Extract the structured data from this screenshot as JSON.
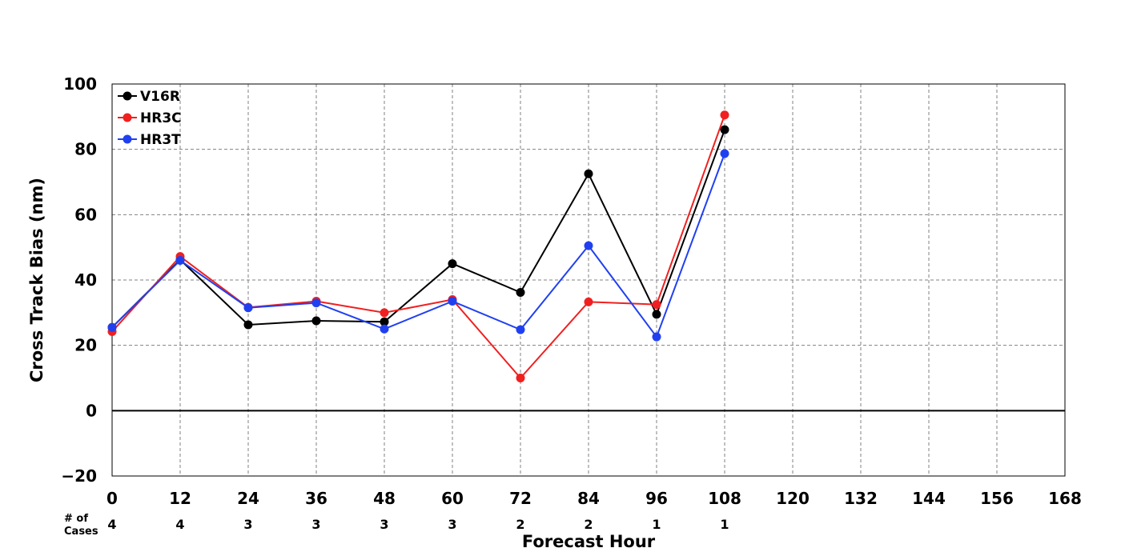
{
  "chart_data": {
    "type": "line",
    "xlabel": "Forecast Hour",
    "ylabel": "Cross Track Bias (nm)",
    "xlim": [
      0,
      168
    ],
    "ylim": [
      -20,
      100
    ],
    "xticks": [
      0,
      12,
      24,
      36,
      48,
      60,
      72,
      84,
      96,
      108,
      120,
      132,
      144,
      156,
      168
    ],
    "yticks": [
      -20,
      0,
      20,
      40,
      60,
      80,
      100
    ],
    "xtick_labels": [
      "0",
      "12",
      "24",
      "36",
      "48",
      "60",
      "72",
      "84",
      "96",
      "108",
      "120",
      "132",
      "144",
      "156",
      "168"
    ],
    "ytick_labels": [
      "−20",
      "0",
      "20",
      "40",
      "60",
      "80",
      "100"
    ],
    "grid": true,
    "legend_position": "top-left",
    "x": [
      0,
      12,
      24,
      36,
      48,
      60,
      72,
      84,
      96,
      108
    ],
    "series": [
      {
        "name": "V16R",
        "color": "#000000",
        "values": [
          25.5,
          46.2,
          26.3,
          27.5,
          27.2,
          45.0,
          36.2,
          72.5,
          29.5,
          86.0
        ]
      },
      {
        "name": "HR3C",
        "color": "#f02020",
        "values": [
          24.2,
          47.2,
          31.6,
          33.5,
          30.0,
          34.0,
          10.0,
          33.3,
          32.5,
          90.5
        ]
      },
      {
        "name": "HR3T",
        "color": "#2040f0",
        "values": [
          25.5,
          46.0,
          31.5,
          33.0,
          25.0,
          33.5,
          24.8,
          50.5,
          22.6,
          78.7
        ]
      }
    ],
    "cases": {
      "title_line1": "# of",
      "title_line2": "Cases",
      "x": [
        0,
        12,
        24,
        36,
        48,
        60,
        72,
        84,
        96,
        108
      ],
      "labels": [
        "4",
        "4",
        "3",
        "3",
        "3",
        "3",
        "2",
        "2",
        "1",
        "1"
      ]
    }
  }
}
